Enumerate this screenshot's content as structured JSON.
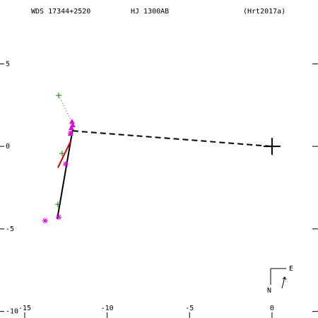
{
  "chart_data": {
    "type": "scatter",
    "header": [
      "WDS 17344+2520",
      "HJ 1300AB",
      "(Hrt2017a)"
    ],
    "xlim": [
      -16.5,
      2.79
    ],
    "ylim": [
      -10.4,
      8.87
    ],
    "xticks": [
      -15,
      -10,
      -5,
      0
    ],
    "yticks": [
      5,
      0,
      -5,
      -10
    ],
    "compass": {
      "north": "N",
      "east": "E"
    },
    "series": [
      {
        "line": "dashed",
        "color": "#000000",
        "x": [
          -12.09,
          0
        ],
        "values": [
          0.94,
          0
        ]
      },
      {
        "line": "solid",
        "color": "#000000",
        "x": [
          -13.03,
          -12.09
        ],
        "values": [
          -4.41,
          1.03
        ]
      },
      {
        "line": "dotted",
        "color": "#008000",
        "x": [
          -12.94,
          -12.09
        ],
        "values": [
          3.09,
          1.37
        ]
      },
      {
        "line": "solid",
        "color": "#cc0000",
        "x": [
          -12.99,
          -12.22
        ],
        "values": [
          -1.29,
          0.3
        ]
      },
      {
        "marker": "plus",
        "color": "#008000",
        "x": [
          -12.94,
          -12.73,
          -12.99
        ],
        "values": [
          3.09,
          -0.43,
          -3.51
        ]
      },
      {
        "marker": "asterisk",
        "color": "#e000e0",
        "x": [
          -13.76,
          -12.94,
          -12.52,
          -12.22
        ],
        "values": [
          -4.5,
          -4.29,
          -1.07,
          0.81
        ]
      },
      {
        "marker": "triangle",
        "color": "#e000e0",
        "x": [
          -12.13,
          -12.09,
          -12.17,
          -12.22
        ],
        "values": [
          1.5,
          1.29,
          1.12,
          0.77
        ]
      },
      {
        "marker": "cross-large",
        "color": "#000000",
        "x": [
          0
        ],
        "values": [
          0
        ]
      }
    ]
  }
}
